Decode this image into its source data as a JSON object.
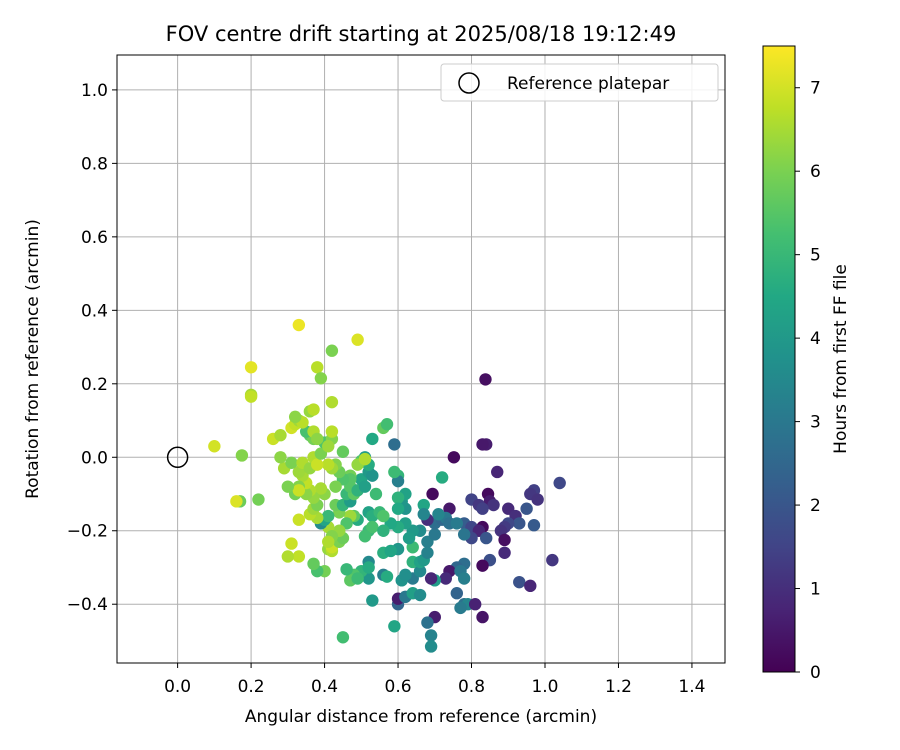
{
  "chart_data": {
    "type": "scatter",
    "title": "FOV centre drift starting at 2025/08/18 19:12:49",
    "xlabel": "Angular distance from reference (arcmin)",
    "ylabel": "Rotation from reference (arcmin)",
    "xlim": [
      -0.165,
      1.49
    ],
    "ylim": [
      -0.56,
      1.095
    ],
    "xticks": [
      0.0,
      0.2,
      0.4,
      0.6,
      0.8,
      1.0,
      1.2,
      1.4
    ],
    "yticks": [
      -0.4,
      -0.2,
      0.0,
      0.2,
      0.4,
      0.6,
      0.8,
      1.0
    ],
    "grid": true,
    "legend": {
      "position": "top-right",
      "entries": [
        "Reference platepar"
      ]
    },
    "reference_point": {
      "x": 0.0,
      "y": 0.0
    },
    "colorbar": {
      "label": "Hours from first FF file",
      "range": [
        0,
        7.5
      ],
      "ticks": [
        0,
        1,
        2,
        3,
        4,
        5,
        6,
        7
      ],
      "colormap": "viridis"
    },
    "points": [
      {
        "x": 0.838,
        "y": 0.212,
        "c": 0.3
      },
      {
        "x": 0.84,
        "y": 0.035,
        "c": 0.6
      },
      {
        "x": 0.83,
        "y": 0.035,
        "c": 0.5
      },
      {
        "x": 0.752,
        "y": 0.0,
        "c": 0.2
      },
      {
        "x": 0.694,
        "y": -0.1,
        "c": 0.2
      },
      {
        "x": 0.74,
        "y": -0.14,
        "c": 0.5
      },
      {
        "x": 0.87,
        "y": -0.04,
        "c": 0.8
      },
      {
        "x": 1.04,
        "y": -0.07,
        "c": 1.6
      },
      {
        "x": 0.97,
        "y": -0.09,
        "c": 1.4
      },
      {
        "x": 0.96,
        "y": -0.1,
        "c": 1.2
      },
      {
        "x": 0.98,
        "y": -0.115,
        "c": 1.1
      },
      {
        "x": 0.95,
        "y": -0.14,
        "c": 2.0
      },
      {
        "x": 0.845,
        "y": -0.1,
        "c": 0.2
      },
      {
        "x": 0.85,
        "y": -0.12,
        "c": 0.6
      },
      {
        "x": 0.8,
        "y": -0.115,
        "c": 1.5
      },
      {
        "x": 0.82,
        "y": -0.13,
        "c": 1.2
      },
      {
        "x": 0.86,
        "y": -0.13,
        "c": 1.1
      },
      {
        "x": 0.83,
        "y": -0.14,
        "c": 1.4
      },
      {
        "x": 0.9,
        "y": -0.14,
        "c": 0.9
      },
      {
        "x": 0.92,
        "y": -0.16,
        "c": 1.0
      },
      {
        "x": 0.93,
        "y": -0.18,
        "c": 2.0
      },
      {
        "x": 0.9,
        "y": -0.18,
        "c": 1.6
      },
      {
        "x": 0.89,
        "y": -0.19,
        "c": 1.3
      },
      {
        "x": 0.97,
        "y": -0.185,
        "c": 2.1
      },
      {
        "x": 0.88,
        "y": -0.2,
        "c": 1.1
      },
      {
        "x": 0.78,
        "y": -0.18,
        "c": 2.2
      },
      {
        "x": 0.8,
        "y": -0.19,
        "c": 1.6
      },
      {
        "x": 0.83,
        "y": -0.19,
        "c": 0.2
      },
      {
        "x": 0.82,
        "y": -0.2,
        "c": 0.8
      },
      {
        "x": 0.8,
        "y": -0.22,
        "c": 1.6
      },
      {
        "x": 0.84,
        "y": -0.22,
        "c": 2.0
      },
      {
        "x": 0.89,
        "y": -0.225,
        "c": 0.3
      },
      {
        "x": 0.89,
        "y": -0.26,
        "c": 0.9
      },
      {
        "x": 0.85,
        "y": -0.28,
        "c": 1.8
      },
      {
        "x": 0.83,
        "y": -0.295,
        "c": 0.2
      },
      {
        "x": 1.02,
        "y": -0.28,
        "c": 1.2
      },
      {
        "x": 0.93,
        "y": -0.34,
        "c": 1.9
      },
      {
        "x": 0.96,
        "y": -0.35,
        "c": 0.8
      },
      {
        "x": 0.78,
        "y": -0.29,
        "c": 2.7
      },
      {
        "x": 0.76,
        "y": -0.3,
        "c": 2.5
      },
      {
        "x": 0.74,
        "y": -0.31,
        "c": 0.5
      },
      {
        "x": 0.77,
        "y": -0.31,
        "c": 3.0
      },
      {
        "x": 0.78,
        "y": -0.33,
        "c": 3.2
      },
      {
        "x": 0.76,
        "y": -0.37,
        "c": 2.4
      },
      {
        "x": 0.73,
        "y": -0.33,
        "c": 0.9
      },
      {
        "x": 0.78,
        "y": -0.4,
        "c": 2.8
      },
      {
        "x": 0.79,
        "y": -0.4,
        "c": 3.4
      },
      {
        "x": 0.77,
        "y": -0.41,
        "c": 3.1
      },
      {
        "x": 0.81,
        "y": -0.4,
        "c": 0.7
      },
      {
        "x": 0.83,
        "y": -0.435,
        "c": 0.4
      },
      {
        "x": 0.7,
        "y": -0.435,
        "c": 0.6
      },
      {
        "x": 0.68,
        "y": -0.45,
        "c": 2.8
      },
      {
        "x": 0.69,
        "y": -0.485,
        "c": 3.3
      },
      {
        "x": 0.69,
        "y": -0.515,
        "c": 3.6
      },
      {
        "x": 0.6,
        "y": -0.4,
        "c": 2.4
      },
      {
        "x": 0.6,
        "y": -0.385,
        "c": 0.6
      },
      {
        "x": 0.62,
        "y": -0.38,
        "c": 3.0
      },
      {
        "x": 0.64,
        "y": -0.37,
        "c": 4.2
      },
      {
        "x": 0.66,
        "y": -0.375,
        "c": 3.6
      },
      {
        "x": 0.7,
        "y": -0.335,
        "c": 4.1
      },
      {
        "x": 0.69,
        "y": -0.33,
        "c": 0.8
      },
      {
        "x": 0.64,
        "y": -0.33,
        "c": 3.1
      },
      {
        "x": 0.61,
        "y": -0.335,
        "c": 3.8
      },
      {
        "x": 0.62,
        "y": -0.32,
        "c": 3.7
      },
      {
        "x": 0.66,
        "y": -0.31,
        "c": 3.5
      },
      {
        "x": 0.59,
        "y": -0.46,
        "c": 4.4
      },
      {
        "x": 0.53,
        "y": -0.39,
        "c": 4.0
      },
      {
        "x": 0.56,
        "y": -0.32,
        "c": 3.2
      },
      {
        "x": 0.57,
        "y": -0.325,
        "c": 4.6
      },
      {
        "x": 0.52,
        "y": -0.33,
        "c": 3.9
      },
      {
        "x": 0.5,
        "y": -0.31,
        "c": 4.9
      },
      {
        "x": 0.52,
        "y": -0.285,
        "c": 3.5
      },
      {
        "x": 0.52,
        "y": -0.3,
        "c": 4.6
      },
      {
        "x": 0.48,
        "y": -0.32,
        "c": 5.4
      },
      {
        "x": 0.47,
        "y": -0.335,
        "c": 5.6
      },
      {
        "x": 0.49,
        "y": -0.33,
        "c": 5.1
      },
      {
        "x": 0.46,
        "y": -0.305,
        "c": 5.0
      },
      {
        "x": 0.4,
        "y": -0.31,
        "c": 5.9
      },
      {
        "x": 0.38,
        "y": -0.31,
        "c": 5.3
      },
      {
        "x": 0.37,
        "y": -0.29,
        "c": 5.7
      },
      {
        "x": 0.41,
        "y": -0.25,
        "c": 6.3
      },
      {
        "x": 0.42,
        "y": -0.255,
        "c": 6.6
      },
      {
        "x": 0.42,
        "y": -0.245,
        "c": 6.9
      },
      {
        "x": 0.44,
        "y": -0.23,
        "c": 6.0
      },
      {
        "x": 0.45,
        "y": -0.22,
        "c": 5.8
      },
      {
        "x": 0.45,
        "y": -0.49,
        "c": 5.2
      },
      {
        "x": 0.33,
        "y": -0.27,
        "c": 6.8
      },
      {
        "x": 0.3,
        "y": -0.27,
        "c": 6.6
      },
      {
        "x": 0.31,
        "y": -0.235,
        "c": 6.9
      },
      {
        "x": 0.56,
        "y": -0.26,
        "c": 4.7
      },
      {
        "x": 0.6,
        "y": -0.25,
        "c": 3.9
      },
      {
        "x": 0.58,
        "y": -0.255,
        "c": 4.4
      },
      {
        "x": 0.64,
        "y": -0.245,
        "c": 5.1
      },
      {
        "x": 0.64,
        "y": -0.285,
        "c": 4.8
      },
      {
        "x": 0.66,
        "y": -0.285,
        "c": 4.3
      },
      {
        "x": 0.67,
        "y": -0.28,
        "c": 4.0
      },
      {
        "x": 0.68,
        "y": -0.26,
        "c": 3.3
      },
      {
        "x": 0.68,
        "y": -0.23,
        "c": 3.2
      },
      {
        "x": 0.7,
        "y": -0.21,
        "c": 3.0
      },
      {
        "x": 0.7,
        "y": -0.18,
        "c": 2.7
      },
      {
        "x": 0.72,
        "y": -0.17,
        "c": 2.5
      },
      {
        "x": 0.73,
        "y": -0.165,
        "c": 3.0
      },
      {
        "x": 0.71,
        "y": -0.155,
        "c": 3.4
      },
      {
        "x": 0.74,
        "y": -0.18,
        "c": 2.8
      },
      {
        "x": 0.76,
        "y": -0.18,
        "c": 3.1
      },
      {
        "x": 0.78,
        "y": -0.21,
        "c": 2.9
      },
      {
        "x": 0.68,
        "y": -0.17,
        "c": 1.0
      },
      {
        "x": 0.66,
        "y": -0.2,
        "c": 3.6
      },
      {
        "x": 0.64,
        "y": -0.2,
        "c": 4.0
      },
      {
        "x": 0.62,
        "y": -0.18,
        "c": 4.2
      },
      {
        "x": 0.6,
        "y": -0.19,
        "c": 4.6
      },
      {
        "x": 0.58,
        "y": -0.18,
        "c": 4.5
      },
      {
        "x": 0.63,
        "y": -0.22,
        "c": 4.1
      },
      {
        "x": 0.62,
        "y": -0.14,
        "c": 3.8
      },
      {
        "x": 0.61,
        "y": -0.12,
        "c": 3.9
      },
      {
        "x": 0.62,
        "y": -0.1,
        "c": 4.3
      },
      {
        "x": 0.6,
        "y": -0.11,
        "c": 4.8
      },
      {
        "x": 0.6,
        "y": -0.14,
        "c": 4.5
      },
      {
        "x": 0.6,
        "y": -0.05,
        "c": 4.9
      },
      {
        "x": 0.6,
        "y": -0.065,
        "c": 3.2
      },
      {
        "x": 0.59,
        "y": 0.035,
        "c": 2.7
      },
      {
        "x": 0.59,
        "y": -0.04,
        "c": 5.1
      },
      {
        "x": 0.67,
        "y": -0.13,
        "c": 4.4
      },
      {
        "x": 0.67,
        "y": -0.155,
        "c": 3.4
      },
      {
        "x": 0.72,
        "y": -0.055,
        "c": 4.6
      },
      {
        "x": 0.52,
        "y": -0.15,
        "c": 4.3
      },
      {
        "x": 0.53,
        "y": -0.16,
        "c": 4.7
      },
      {
        "x": 0.55,
        "y": -0.15,
        "c": 5.0
      },
      {
        "x": 0.56,
        "y": -0.16,
        "c": 5.4
      },
      {
        "x": 0.52,
        "y": -0.2,
        "c": 5.0
      },
      {
        "x": 0.53,
        "y": -0.19,
        "c": 5.3
      },
      {
        "x": 0.51,
        "y": -0.215,
        "c": 5.2
      },
      {
        "x": 0.56,
        "y": -0.2,
        "c": 4.8
      },
      {
        "x": 0.49,
        "y": -0.17,
        "c": 4.6
      },
      {
        "x": 0.48,
        "y": -0.16,
        "c": 5.6
      },
      {
        "x": 0.47,
        "y": -0.16,
        "c": 6.4
      },
      {
        "x": 0.46,
        "y": -0.18,
        "c": 5.4
      },
      {
        "x": 0.44,
        "y": -0.15,
        "c": 6.0
      },
      {
        "x": 0.44,
        "y": -0.2,
        "c": 6.3
      },
      {
        "x": 0.41,
        "y": -0.19,
        "c": 6.5
      },
      {
        "x": 0.42,
        "y": -0.215,
        "c": 6.1
      },
      {
        "x": 0.41,
        "y": -0.23,
        "c": 6.6
      },
      {
        "x": 0.39,
        "y": -0.18,
        "c": 3.6
      },
      {
        "x": 0.4,
        "y": -0.17,
        "c": 4.4
      },
      {
        "x": 0.41,
        "y": -0.16,
        "c": 5.0
      },
      {
        "x": 0.38,
        "y": -0.165,
        "c": 6.5
      },
      {
        "x": 0.36,
        "y": -0.155,
        "c": 6.7
      },
      {
        "x": 0.37,
        "y": -0.14,
        "c": 6.4
      },
      {
        "x": 0.33,
        "y": -0.17,
        "c": 6.9
      },
      {
        "x": 0.43,
        "y": -0.13,
        "c": 5.8
      },
      {
        "x": 0.45,
        "y": -0.13,
        "c": 4.9
      },
      {
        "x": 0.47,
        "y": -0.12,
        "c": 4.1
      },
      {
        "x": 0.46,
        "y": -0.1,
        "c": 5.0
      },
      {
        "x": 0.48,
        "y": -0.1,
        "c": 5.6
      },
      {
        "x": 0.47,
        "y": -0.08,
        "c": 5.5
      },
      {
        "x": 0.49,
        "y": -0.09,
        "c": 4.8
      },
      {
        "x": 0.5,
        "y": -0.06,
        "c": 4.4
      },
      {
        "x": 0.51,
        "y": -0.08,
        "c": 4.2
      },
      {
        "x": 0.52,
        "y": -0.04,
        "c": 4.0
      },
      {
        "x": 0.53,
        "y": -0.05,
        "c": 3.8
      },
      {
        "x": 0.51,
        "y": 0.0,
        "c": 4.1
      },
      {
        "x": 0.52,
        "y": -0.02,
        "c": 4.6
      },
      {
        "x": 0.5,
        "y": -0.01,
        "c": 5.4
      },
      {
        "x": 0.49,
        "y": -0.02,
        "c": 6.3
      },
      {
        "x": 0.51,
        "y": -0.005,
        "c": 6.6
      },
      {
        "x": 0.54,
        "y": -0.1,
        "c": 5.1
      },
      {
        "x": 0.53,
        "y": 0.05,
        "c": 4.5
      },
      {
        "x": 0.56,
        "y": 0.08,
        "c": 5.7
      },
      {
        "x": 0.57,
        "y": 0.09,
        "c": 5.2
      },
      {
        "x": 0.47,
        "y": -0.05,
        "c": 5.9
      },
      {
        "x": 0.47,
        "y": -0.06,
        "c": 5.5
      },
      {
        "x": 0.45,
        "y": -0.06,
        "c": 5.4
      },
      {
        "x": 0.44,
        "y": -0.04,
        "c": 5.8
      },
      {
        "x": 0.45,
        "y": 0.015,
        "c": 5.7
      },
      {
        "x": 0.43,
        "y": -0.02,
        "c": 6.1
      },
      {
        "x": 0.42,
        "y": -0.03,
        "c": 6.4
      },
      {
        "x": 0.41,
        "y": -0.02,
        "c": 6.7
      },
      {
        "x": 0.43,
        "y": -0.08,
        "c": 6.0
      },
      {
        "x": 0.4,
        "y": -0.1,
        "c": 6.2
      },
      {
        "x": 0.39,
        "y": -0.085,
        "c": 6.5
      },
      {
        "x": 0.38,
        "y": -0.13,
        "c": 6.0
      },
      {
        "x": 0.37,
        "y": -0.11,
        "c": 6.3
      },
      {
        "x": 0.36,
        "y": -0.09,
        "c": 6.6
      },
      {
        "x": 0.35,
        "y": -0.1,
        "c": 6.2
      },
      {
        "x": 0.35,
        "y": -0.07,
        "c": 6.8
      },
      {
        "x": 0.34,
        "y": -0.05,
        "c": 6.5
      },
      {
        "x": 0.33,
        "y": -0.04,
        "c": 6.4
      },
      {
        "x": 0.33,
        "y": -0.08,
        "c": 6.1
      },
      {
        "x": 0.32,
        "y": -0.1,
        "c": 5.9
      },
      {
        "x": 0.33,
        "y": -0.09,
        "c": 6.9
      },
      {
        "x": 0.3,
        "y": -0.08,
        "c": 6.0
      },
      {
        "x": 0.29,
        "y": -0.03,
        "c": 6.5
      },
      {
        "x": 0.28,
        "y": 0.0,
        "c": 6.2
      },
      {
        "x": 0.31,
        "y": -0.015,
        "c": 6.0
      },
      {
        "x": 0.34,
        "y": -0.015,
        "c": 6.6
      },
      {
        "x": 0.36,
        "y": -0.03,
        "c": 6.3
      },
      {
        "x": 0.37,
        "y": 0.0,
        "c": 6.6
      },
      {
        "x": 0.38,
        "y": -0.02,
        "c": 6.9
      },
      {
        "x": 0.39,
        "y": 0.01,
        "c": 6.0
      },
      {
        "x": 0.4,
        "y": 0.04,
        "c": 5.4
      },
      {
        "x": 0.42,
        "y": 0.05,
        "c": 6.1
      },
      {
        "x": 0.41,
        "y": 0.03,
        "c": 6.4
      },
      {
        "x": 0.42,
        "y": 0.07,
        "c": 6.7
      },
      {
        "x": 0.36,
        "y": 0.06,
        "c": 5.6
      },
      {
        "x": 0.37,
        "y": 0.05,
        "c": 5.9
      },
      {
        "x": 0.35,
        "y": 0.07,
        "c": 5.3
      },
      {
        "x": 0.37,
        "y": 0.07,
        "c": 6.6
      },
      {
        "x": 0.38,
        "y": 0.05,
        "c": 6.2
      },
      {
        "x": 0.31,
        "y": 0.08,
        "c": 7.0
      },
      {
        "x": 0.32,
        "y": 0.09,
        "c": 6.8
      },
      {
        "x": 0.33,
        "y": 0.1,
        "c": 6.4
      },
      {
        "x": 0.34,
        "y": 0.095,
        "c": 6.7
      },
      {
        "x": 0.32,
        "y": 0.11,
        "c": 6.2
      },
      {
        "x": 0.26,
        "y": 0.05,
        "c": 6.9
      },
      {
        "x": 0.28,
        "y": 0.06,
        "c": 6.5
      },
      {
        "x": 0.36,
        "y": 0.125,
        "c": 6.3
      },
      {
        "x": 0.37,
        "y": 0.13,
        "c": 6.7
      },
      {
        "x": 0.42,
        "y": 0.15,
        "c": 6.6
      },
      {
        "x": 0.2,
        "y": 0.17,
        "c": 6.5
      },
      {
        "x": 0.2,
        "y": 0.165,
        "c": 6.8
      },
      {
        "x": 0.38,
        "y": 0.245,
        "c": 6.7
      },
      {
        "x": 0.39,
        "y": 0.215,
        "c": 6.1
      },
      {
        "x": 0.42,
        "y": 0.29,
        "c": 6.0
      },
      {
        "x": 0.2,
        "y": 0.245,
        "c": 7.2
      },
      {
        "x": 0.33,
        "y": 0.36,
        "c": 7.3
      },
      {
        "x": 0.49,
        "y": 0.32,
        "c": 7.1
      },
      {
        "x": 0.1,
        "y": 0.03,
        "c": 7.0
      },
      {
        "x": 0.175,
        "y": 0.005,
        "c": 6.1
      },
      {
        "x": 0.17,
        "y": -0.12,
        "c": 5.8
      },
      {
        "x": 0.16,
        "y": -0.12,
        "c": 7.1
      },
      {
        "x": 0.22,
        "y": -0.115,
        "c": 5.9
      }
    ]
  }
}
